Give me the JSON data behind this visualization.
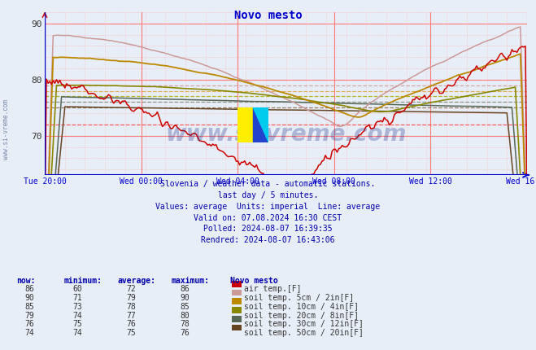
{
  "title": "Novo mesto",
  "title_color": "#0000cc",
  "bg_color": "#e8eef8",
  "plot_bg_color": "#e8eef8",
  "x_labels": [
    "Tue 20:00",
    "Wed 00:00",
    "Wed 04:00",
    "Wed 08:00",
    "Wed 12:00",
    "Wed 16:00"
  ],
  "x_ticks_norm": [
    0.0,
    0.2,
    0.4,
    0.6,
    0.8,
    1.0
  ],
  "ylim": [
    63,
    92
  ],
  "yticks": [
    70,
    80,
    90
  ],
  "watermark": "www.si-vreme.com",
  "subtitle_lines": [
    "Slovenia / weather data - automatic stations.",
    "last day / 5 minutes.",
    "Values: average  Units: imperial  Line: average",
    "Valid on: 07.08.2024 16:30 CEST",
    "Polled: 2024-08-07 16:39:35",
    "Rendred: 2024-08-07 16:43:06"
  ],
  "legend_rows": [
    {
      "now": "86",
      "minimum": "60",
      "average": "72",
      "maximum": "86",
      "color": "#cc0000",
      "label": "air temp.[F]"
    },
    {
      "now": "90",
      "minimum": "71",
      "average": "79",
      "maximum": "90",
      "color": "#cc9999",
      "label": "soil temp. 5cm / 2in[F]"
    },
    {
      "now": "85",
      "minimum": "73",
      "average": "78",
      "maximum": "85",
      "color": "#bb8800",
      "label": "soil temp. 10cm / 4in[F]"
    },
    {
      "now": "79",
      "minimum": "74",
      "average": "77",
      "maximum": "80",
      "color": "#888800",
      "label": "soil temp. 20cm / 8in[F]"
    },
    {
      "now": "76",
      "minimum": "75",
      "average": "76",
      "maximum": "78",
      "color": "#556655",
      "label": "soil temp. 30cm / 12in[F]"
    },
    {
      "now": "74",
      "minimum": "74",
      "average": "75",
      "maximum": "76",
      "color": "#664422",
      "label": "soil temp. 50cm / 20in[F]"
    }
  ],
  "series_colors": {
    "air_temp": "#cc0000",
    "soil_5cm": "#cc9999",
    "soil_10cm": "#bb8800",
    "soil_20cm": "#888800",
    "soil_30cm": "#556655",
    "soil_50cm": "#664422"
  },
  "avg_line_colors": {
    "air_temp": "#ff4444",
    "soil_5cm": "#cc9999",
    "soil_10cm": "#ddaa44",
    "soil_20cm": "#aaaa00",
    "soil_30cm": "#778877",
    "soil_50cm": "#886644"
  },
  "left_label": "www.si-vreme.com"
}
